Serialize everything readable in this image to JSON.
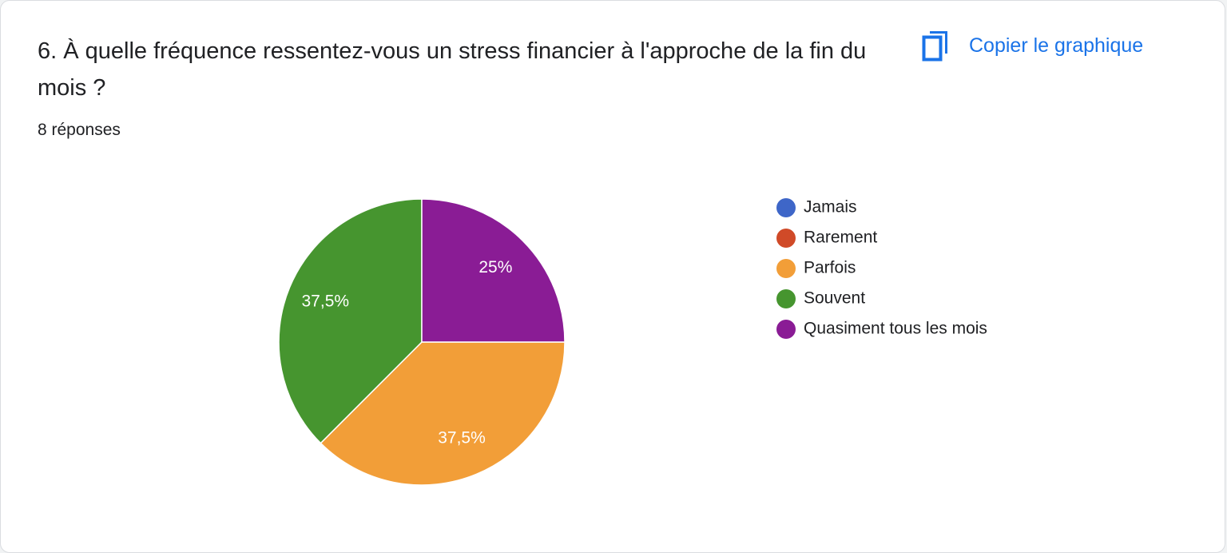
{
  "copy_button": "Copier le graphique",
  "chart_data": {
    "type": "pie",
    "title": "6. À quelle fréquence ressentez-vous un stress financier à l'approche de la fin du mois ?",
    "subtitle": "8 réponses",
    "categories": [
      "Jamais",
      "Rarement",
      "Parfois",
      "Souvent",
      "Quasiment tous les mois"
    ],
    "values": [
      0,
      0,
      37.5,
      37.5,
      25
    ],
    "value_labels": [
      null,
      null,
      "37,5%",
      "37,5%",
      "25%"
    ],
    "colors": [
      "#3e66c8",
      "#d04a28",
      "#f29e38",
      "#46952f",
      "#8a1c95"
    ],
    "legend": "right"
  }
}
